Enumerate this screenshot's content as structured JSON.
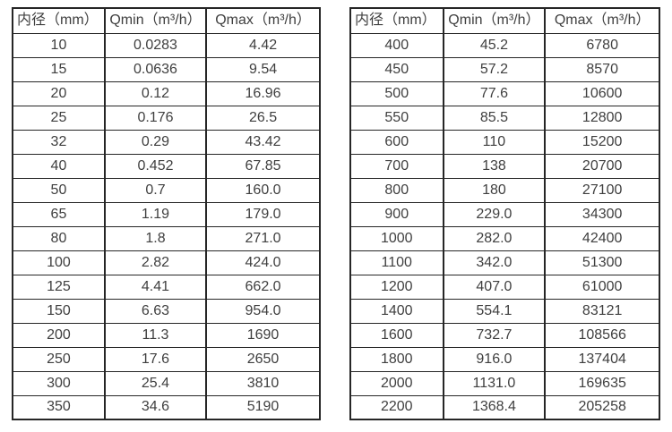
{
  "page": {
    "background": "#ffffff",
    "text_color": "#3f3f3f",
    "border_color": "#262626"
  },
  "chart_data": [
    {
      "type": "table",
      "title": "",
      "columns": [
        "内径（mm）",
        "Qmin（m³/h）",
        "Qmax（m³/h）"
      ],
      "rows": [
        [
          "10",
          "0.0283",
          "4.42"
        ],
        [
          "15",
          "0.0636",
          "9.54"
        ],
        [
          "20",
          "0.12",
          "16.96"
        ],
        [
          "25",
          "0.176",
          "26.5"
        ],
        [
          "32",
          "0.29",
          "43.42"
        ],
        [
          "40",
          "0.452",
          "67.85"
        ],
        [
          "50",
          "0.7",
          "160.0"
        ],
        [
          "65",
          "1.19",
          "179.0"
        ],
        [
          "80",
          "1.8",
          "271.0"
        ],
        [
          "100",
          "2.82",
          "424.0"
        ],
        [
          "125",
          "4.41",
          "662.0"
        ],
        [
          "150",
          "6.63",
          "954.0"
        ],
        [
          "200",
          "11.3",
          "1690"
        ],
        [
          "250",
          "17.6",
          "2650"
        ],
        [
          "300",
          "25.4",
          "3810"
        ],
        [
          "350",
          "34.6",
          "5190"
        ]
      ]
    },
    {
      "type": "table",
      "title": "",
      "columns": [
        "内径（mm）",
        "Qmin（m³/h）",
        "Qmax（m³/h）"
      ],
      "rows": [
        [
          "400",
          "45.2",
          "6780"
        ],
        [
          "450",
          "57.2",
          "8570"
        ],
        [
          "500",
          "77.6",
          "10600"
        ],
        [
          "550",
          "85.5",
          "12800"
        ],
        [
          "600",
          "110",
          "15200"
        ],
        [
          "700",
          "138",
          "20700"
        ],
        [
          "800",
          "180",
          "27100"
        ],
        [
          "900",
          "229.0",
          "34300"
        ],
        [
          "1000",
          "282.0",
          "42400"
        ],
        [
          "1100",
          "342.0",
          "51300"
        ],
        [
          "1200",
          "407.0",
          "61000"
        ],
        [
          "1400",
          "554.1",
          "83121"
        ],
        [
          "1600",
          "732.7",
          "108566"
        ],
        [
          "1800",
          "916.0",
          "137404"
        ],
        [
          "2000",
          "1131.0",
          "169635"
        ],
        [
          "2200",
          "1368.4",
          "205258"
        ]
      ]
    }
  ]
}
